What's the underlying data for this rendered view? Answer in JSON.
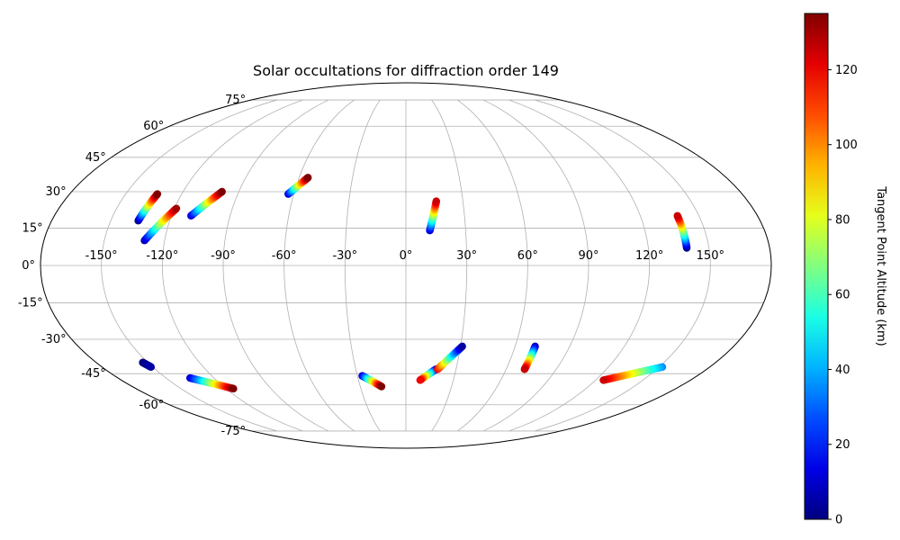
{
  "chart_data": {
    "type": "scatter",
    "projection": "mollweide",
    "title": "Solar occultations for diffraction order 149",
    "grid": true,
    "lon_ticks": [
      "-150°",
      "-120°",
      "-90°",
      "-60°",
      "-30°",
      "0°",
      "30°",
      "60°",
      "90°",
      "120°",
      "150°"
    ],
    "lat_ticks": [
      "-75°",
      "-60°",
      "-45°",
      "-30°",
      "-15°",
      "0°",
      "15°",
      "30°",
      "45°",
      "60°",
      "75°"
    ],
    "colorbar": {
      "label": "Tangent Point Altitude (km)",
      "colormap": "jet",
      "range": [
        0,
        135
      ],
      "ticks": [
        "0",
        "20",
        "40",
        "60",
        "80",
        "100",
        "120"
      ]
    },
    "series": [
      {
        "start": {
          "lon": -136,
          "lat": 18,
          "alt": 0
        },
        "end": {
          "lon": -133,
          "lat": 29,
          "alt": 135
        }
      },
      {
        "start": {
          "lon": -130,
          "lat": 10,
          "alt": 5
        },
        "end": {
          "lon": -119,
          "lat": 23,
          "alt": 130
        }
      },
      {
        "start": {
          "lon": -110,
          "lat": 20,
          "alt": 10
        },
        "end": {
          "lon": -99,
          "lat": 30,
          "alt": 135
        }
      },
      {
        "start": {
          "lon": -63,
          "lat": 29,
          "alt": 10
        },
        "end": {
          "lon": -55,
          "lat": 36,
          "alt": 135
        }
      },
      {
        "start": {
          "lon": 12,
          "lat": 14,
          "alt": 10
        },
        "end": {
          "lon": 16,
          "lat": 26,
          "alt": 125
        }
      },
      {
        "start": {
          "lon": 139,
          "lat": 7,
          "alt": 0
        },
        "end": {
          "lon": 139,
          "lat": 20,
          "alt": 125
        }
      },
      {
        "start": {
          "lon": -153,
          "lat": -40,
          "alt": 0
        },
        "end": {
          "lon": -151,
          "lat": -42,
          "alt": 5
        }
      },
      {
        "start": {
          "lon": -135,
          "lat": -47,
          "alt": 10
        },
        "end": {
          "lon": -115,
          "lat": -52,
          "alt": 135
        }
      },
      {
        "start": {
          "lon": -27,
          "lat": -46,
          "alt": 10
        },
        "end": {
          "lon": -16,
          "lat": -51,
          "alt": 135
        }
      },
      {
        "start": {
          "lon": 18,
          "lat": -43,
          "alt": 0
        },
        "end": {
          "lon": 9,
          "lat": -48,
          "alt": 120
        }
      },
      {
        "start": {
          "lon": 19,
          "lat": -43,
          "alt": 120
        },
        "end": {
          "lon": 31,
          "lat": -33,
          "alt": 5
        }
      },
      {
        "start": {
          "lon": 71,
          "lat": -33,
          "alt": 5
        },
        "end": {
          "lon": 71,
          "lat": -43,
          "alt": 125
        }
      },
      {
        "start": {
          "lon": 152,
          "lat": -42,
          "alt": 35
        },
        "end": {
          "lon": 125,
          "lat": -48,
          "alt": 125
        }
      }
    ]
  }
}
